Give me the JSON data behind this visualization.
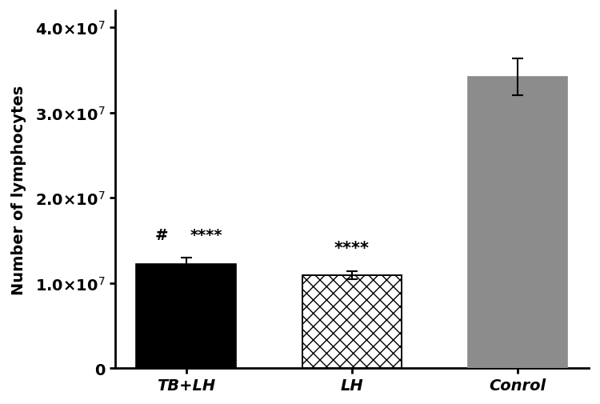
{
  "categories": [
    "TB+LH",
    "LH",
    "Conrol"
  ],
  "values": [
    12200000.0,
    10900000.0,
    34200000.0
  ],
  "errors": [
    750000.0,
    450000.0,
    2200000.0
  ],
  "bar_colors": [
    "#000000",
    "checkerboard",
    "#8c8c8c"
  ],
  "checkerboard_color": "#b0b0b0",
  "ylabel": "Number of lymphocytes",
  "ylim": [
    0,
    42000000.0
  ],
  "yticks": [
    0,
    10000000.0,
    20000000.0,
    30000000.0,
    40000000.0
  ],
  "bar_width": 0.6,
  "background_color": "#ffffff",
  "tick_fontsize": 14,
  "label_fontsize": 14,
  "annotation_fontsize": 14,
  "edge_color": "#000000",
  "bar_spacing": 1.0
}
